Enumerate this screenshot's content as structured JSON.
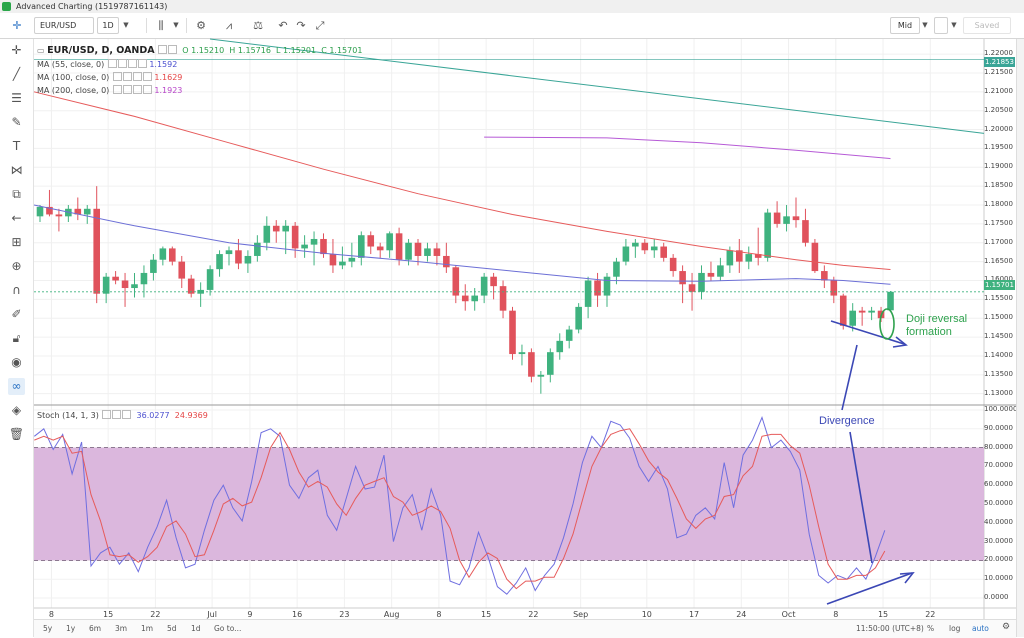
{
  "window": {
    "title": "Advanced Charting (1519787161143)"
  },
  "toolbar": {
    "symbol": "EUR/USD",
    "interval": "1D",
    "price_type": "Mid",
    "saved_label": "Saved"
  },
  "legend": {
    "symbol_line": "EUR/USD, D, OANDA",
    "open": "O 1.15210",
    "high": "H 1.15716",
    "low": "L 1.15201",
    "close": "C 1.15701",
    "ma": [
      {
        "label": "MA (55, close, 0)",
        "value": "1.1592",
        "color": "#4b4fcf"
      },
      {
        "label": "MA (100, close, 0)",
        "value": "1.1629",
        "color": "#e54545"
      },
      {
        "label": "MA (200, close, 0)",
        "value": "1.1923",
        "color": "#b844c9"
      }
    ],
    "stoch_label": "Stoch (14, 1, 3)",
    "stoch_k": "36.0277",
    "stoch_d": "24.9369"
  },
  "price_axis": {
    "labels": [
      "1.22000",
      "1.21500",
      "1.21000",
      "1.20500",
      "1.20000",
      "1.19500",
      "1.19000",
      "1.18500",
      "1.18000",
      "1.17500",
      "1.17000",
      "1.16500",
      "1.16000",
      "1.15500",
      "1.15000",
      "1.14500",
      "1.14000",
      "1.13500",
      "1.13000"
    ],
    "badge_top": "1.21853",
    "badge_price": "1.15701"
  },
  "stoch_axis": {
    "labels": [
      "100.0000",
      "90.0000",
      "80.0000",
      "70.0000",
      "60.0000",
      "50.0000",
      "40.0000",
      "30.0000",
      "20.0000",
      "10.0000",
      "0.0000"
    ]
  },
  "time_axis": {
    "labels": [
      "8",
      "15",
      "22",
      "Jul",
      "9",
      "16",
      "23",
      "Aug",
      "8",
      "15",
      "22",
      "Sep",
      "10",
      "17",
      "24",
      "Oct",
      "8",
      "15",
      "22"
    ]
  },
  "bottom_bar": {
    "ranges": [
      "5y",
      "1y",
      "6m",
      "3m",
      "1m",
      "5d",
      "1d"
    ],
    "goto": "Go to...",
    "time": "11:50:00 (UTC+8)",
    "pct": "%",
    "log": "log",
    "auto": "auto"
  },
  "annotations": {
    "doji": "Doji reversal\nformation",
    "divergence": "Divergence"
  },
  "colors": {
    "up": "#3fb27f",
    "down": "#e0525c",
    "ma55": "#6c6fd6",
    "ma100": "#e65b5b",
    "ma200": "#b65ad6",
    "trend": "#3aa597",
    "stoch_band": "#d9b3db",
    "stoch_k": "#6f6fe0",
    "stoch_d": "#e65b5b",
    "annot_blue": "#3b47b5",
    "annot_green": "#2fa24e"
  },
  "chart_data": [
    {
      "type": "candlestick",
      "title": "EUR/USD, D, OANDA",
      "ylim": [
        1.127,
        1.224
      ],
      "x": [
        "Jun 6",
        "Jun 7",
        "Jun 8",
        "Jun 11",
        "Jun 12",
        "Jun 13",
        "Jun 14",
        "Jun 15",
        "Jun 18",
        "Jun 19",
        "Jun 20",
        "Jun 21",
        "Jun 22",
        "Jun 25",
        "Jun 26",
        "Jun 27",
        "Jun 28",
        "Jun 29",
        "Jul 2",
        "Jul 3",
        "Jul 4",
        "Jul 5",
        "Jul 6",
        "Jul 9",
        "Jul 10",
        "Jul 11",
        "Jul 12",
        "Jul 13",
        "Jul 16",
        "Jul 17",
        "Jul 18",
        "Jul 19",
        "Jul 20",
        "Jul 23",
        "Jul 24",
        "Jul 25",
        "Jul 26",
        "Jul 27",
        "Jul 30",
        "Jul 31",
        "Aug 1",
        "Aug 2",
        "Aug 3",
        "Aug 6",
        "Aug 7",
        "Aug 8",
        "Aug 9",
        "Aug 10",
        "Aug 13",
        "Aug 14",
        "Aug 15",
        "Aug 16",
        "Aug 17",
        "Aug 20",
        "Aug 21",
        "Aug 22",
        "Aug 23",
        "Aug 24",
        "Aug 27",
        "Aug 28",
        "Aug 29",
        "Aug 30",
        "Aug 31",
        "Sep 3",
        "Sep 4",
        "Sep 5",
        "Sep 6",
        "Sep 7",
        "Sep 10",
        "Sep 11",
        "Sep 12",
        "Sep 13",
        "Sep 14",
        "Sep 17",
        "Sep 18",
        "Sep 19",
        "Sep 20",
        "Sep 21",
        "Sep 24",
        "Sep 25",
        "Sep 26",
        "Sep 27",
        "Sep 28",
        "Oct 1",
        "Oct 2",
        "Oct 3",
        "Oct 4",
        "Oct 5",
        "Oct 8",
        "Oct 9",
        "Oct 10"
      ],
      "ohlc": [
        [
          1.177,
          1.18,
          1.1755,
          1.1795
        ],
        [
          1.1795,
          1.184,
          1.177,
          1.1775
        ],
        [
          1.1775,
          1.179,
          1.173,
          1.177
        ],
        [
          1.177,
          1.18,
          1.1755,
          1.179
        ],
        [
          1.179,
          1.182,
          1.176,
          1.1775
        ],
        [
          1.1775,
          1.18,
          1.175,
          1.179
        ],
        [
          1.179,
          1.185,
          1.154,
          1.1565
        ],
        [
          1.1565,
          1.162,
          1.154,
          1.161
        ],
        [
          1.161,
          1.1625,
          1.159,
          1.16
        ],
        [
          1.16,
          1.162,
          1.153,
          1.158
        ],
        [
          1.158,
          1.162,
          1.1555,
          1.159
        ],
        [
          1.159,
          1.164,
          1.1555,
          1.162
        ],
        [
          1.162,
          1.167,
          1.16,
          1.1655
        ],
        [
          1.1655,
          1.169,
          1.164,
          1.1685
        ],
        [
          1.1685,
          1.169,
          1.164,
          1.165
        ],
        [
          1.165,
          1.1665,
          1.158,
          1.1605
        ],
        [
          1.1605,
          1.1615,
          1.1555,
          1.1565
        ],
        [
          1.1565,
          1.1595,
          1.153,
          1.1575
        ],
        [
          1.1575,
          1.164,
          1.156,
          1.163
        ],
        [
          1.163,
          1.168,
          1.161,
          1.167
        ],
        [
          1.167,
          1.169,
          1.164,
          1.168
        ],
        [
          1.168,
          1.171,
          1.163,
          1.1645
        ],
        [
          1.1645,
          1.168,
          1.162,
          1.1665
        ],
        [
          1.1665,
          1.172,
          1.165,
          1.17
        ],
        [
          1.17,
          1.177,
          1.168,
          1.1745
        ],
        [
          1.1745,
          1.176,
          1.17,
          1.173
        ],
        [
          1.173,
          1.176,
          1.167,
          1.1745
        ],
        [
          1.1745,
          1.1755,
          1.166,
          1.1685
        ],
        [
          1.1685,
          1.172,
          1.166,
          1.1695
        ],
        [
          1.1695,
          1.173,
          1.164,
          1.171
        ],
        [
          1.171,
          1.1725,
          1.166,
          1.167
        ],
        [
          1.167,
          1.171,
          1.162,
          1.164
        ],
        [
          1.164,
          1.169,
          1.163,
          1.165
        ],
        [
          1.165,
          1.17,
          1.1635,
          1.166
        ],
        [
          1.166,
          1.173,
          1.164,
          1.172
        ],
        [
          1.172,
          1.173,
          1.167,
          1.169
        ],
        [
          1.169,
          1.17,
          1.166,
          1.168
        ],
        [
          1.168,
          1.173,
          1.166,
          1.1725
        ],
        [
          1.1725,
          1.174,
          1.164,
          1.1655
        ],
        [
          1.1655,
          1.171,
          1.164,
          1.17
        ],
        [
          1.17,
          1.171,
          1.164,
          1.1665
        ],
        [
          1.1665,
          1.17,
          1.165,
          1.1685
        ],
        [
          1.1685,
          1.17,
          1.164,
          1.1665
        ],
        [
          1.1665,
          1.17,
          1.162,
          1.1635
        ],
        [
          1.1635,
          1.164,
          1.154,
          1.156
        ],
        [
          1.156,
          1.159,
          1.152,
          1.1545
        ],
        [
          1.1545,
          1.158,
          1.152,
          1.156
        ],
        [
          1.156,
          1.162,
          1.154,
          1.161
        ],
        [
          1.161,
          1.162,
          1.155,
          1.1585
        ],
        [
          1.1585,
          1.16,
          1.15,
          1.152
        ],
        [
          1.152,
          1.153,
          1.139,
          1.1405
        ],
        [
          1.1405,
          1.143,
          1.1375,
          1.141
        ],
        [
          1.141,
          1.142,
          1.133,
          1.1345
        ],
        [
          1.1345,
          1.136,
          1.13,
          1.135
        ],
        [
          1.135,
          1.142,
          1.133,
          1.141
        ],
        [
          1.141,
          1.146,
          1.139,
          1.144
        ],
        [
          1.144,
          1.148,
          1.142,
          1.147
        ],
        [
          1.147,
          1.154,
          1.146,
          1.153
        ],
        [
          1.153,
          1.161,
          1.15,
          1.16
        ],
        [
          1.16,
          1.162,
          1.153,
          1.156
        ],
        [
          1.156,
          1.162,
          1.153,
          1.161
        ],
        [
          1.161,
          1.166,
          1.159,
          1.165
        ],
        [
          1.165,
          1.171,
          1.164,
          1.169
        ],
        [
          1.169,
          1.171,
          1.166,
          1.17
        ],
        [
          1.17,
          1.171,
          1.167,
          1.168
        ],
        [
          1.168,
          1.171,
          1.166,
          1.169
        ],
        [
          1.169,
          1.17,
          1.165,
          1.166
        ],
        [
          1.166,
          1.167,
          1.161,
          1.1625
        ],
        [
          1.1625,
          1.164,
          1.154,
          1.159
        ],
        [
          1.159,
          1.162,
          1.152,
          1.157
        ],
        [
          1.157,
          1.164,
          1.155,
          1.162
        ],
        [
          1.162,
          1.165,
          1.16,
          1.161
        ],
        [
          1.161,
          1.166,
          1.16,
          1.164
        ],
        [
          1.164,
          1.169,
          1.162,
          1.168
        ],
        [
          1.168,
          1.171,
          1.162,
          1.165
        ],
        [
          1.165,
          1.169,
          1.163,
          1.167
        ],
        [
          1.167,
          1.174,
          1.164,
          1.166
        ],
        [
          1.166,
          1.179,
          1.165,
          1.178
        ],
        [
          1.178,
          1.181,
          1.174,
          1.175
        ],
        [
          1.175,
          1.18,
          1.173,
          1.177
        ],
        [
          1.177,
          1.182,
          1.174,
          1.176
        ],
        [
          1.176,
          1.179,
          1.169,
          1.17
        ],
        [
          1.17,
          1.171,
          1.162,
          1.1625
        ],
        [
          1.1625,
          1.164,
          1.158,
          1.16
        ],
        [
          1.16,
          1.161,
          1.154,
          1.156
        ],
        [
          1.156,
          1.1565,
          1.147,
          1.148
        ],
        [
          1.148,
          1.154,
          1.1465,
          1.152
        ],
        [
          1.152,
          1.153,
          1.148,
          1.1515
        ],
        [
          1.1515,
          1.153,
          1.1495,
          1.152
        ],
        [
          1.152,
          1.153,
          1.149,
          1.15
        ],
        [
          1.1521,
          1.1572,
          1.152,
          1.157
        ]
      ],
      "ma55": [
        [
          0,
          1.18
        ],
        [
          10,
          1.1745
        ],
        [
          20,
          1.17
        ],
        [
          30,
          1.1672
        ],
        [
          40,
          1.165
        ],
        [
          50,
          1.1625
        ],
        [
          60,
          1.16
        ],
        [
          70,
          1.1598
        ],
        [
          80,
          1.1605
        ],
        [
          85,
          1.16
        ],
        [
          90,
          1.159
        ]
      ],
      "ma100": [
        [
          0,
          1.21
        ],
        [
          10,
          1.2035
        ],
        [
          20,
          1.1965
        ],
        [
          30,
          1.1895
        ],
        [
          40,
          1.183
        ],
        [
          50,
          1.1775
        ],
        [
          60,
          1.173
        ],
        [
          70,
          1.169
        ],
        [
          80,
          1.1655
        ],
        [
          85,
          1.164
        ],
        [
          90,
          1.1629
        ]
      ],
      "ma200": [
        [
          47,
          1.198
        ],
        [
          60,
          1.1978
        ],
        [
          70,
          1.1965
        ],
        [
          80,
          1.1945
        ],
        [
          90,
          1.1923
        ]
      ],
      "trendline": [
        [
          0,
          1.224
        ],
        [
          90,
          1.199
        ]
      ]
    },
    {
      "type": "line",
      "title": "Stoch (14, 1, 3)",
      "ylim": [
        0,
        100
      ],
      "bands": [
        20,
        80
      ],
      "series": [
        {
          "name": "%K",
          "values": [
            86,
            90,
            79,
            87,
            66,
            83,
            17,
            24,
            27,
            18,
            24,
            14,
            27,
            38,
            52,
            32,
            16,
            18,
            36,
            52,
            60,
            48,
            41,
            62,
            88,
            90,
            86,
            60,
            53,
            64,
            68,
            44,
            36,
            53,
            70,
            58,
            59,
            76,
            30,
            48,
            55,
            36,
            58,
            44,
            9,
            7,
            16,
            35,
            22,
            6,
            2,
            8,
            16,
            4,
            12,
            18,
            32,
            50,
            72,
            86,
            80,
            94,
            92,
            85,
            70,
            62,
            70,
            58,
            32,
            34,
            44,
            48,
            42,
            72,
            48,
            76,
            84,
            96,
            80,
            84,
            78,
            68,
            34,
            12,
            8,
            12,
            10,
            16,
            10,
            22,
            36
          ]
        },
        {
          "name": "%D",
          "values": [
            84,
            86,
            84,
            86,
            77,
            78,
            55,
            41,
            23,
            22,
            23,
            19,
            22,
            27,
            38,
            41,
            34,
            22,
            23,
            36,
            50,
            53,
            49,
            51,
            64,
            80,
            88,
            79,
            67,
            59,
            62,
            59,
            50,
            44,
            53,
            60,
            62,
            64,
            54,
            51,
            44,
            46,
            49,
            46,
            37,
            20,
            11,
            19,
            24,
            21,
            10,
            5,
            9,
            9,
            11,
            11,
            21,
            34,
            52,
            70,
            80,
            87,
            89,
            90,
            82,
            73,
            67,
            63,
            53,
            42,
            37,
            42,
            44,
            54,
            55,
            65,
            70,
            86,
            87,
            87,
            81,
            77,
            60,
            38,
            18,
            10,
            10,
            12,
            12,
            16,
            25
          ]
        }
      ]
    }
  ]
}
